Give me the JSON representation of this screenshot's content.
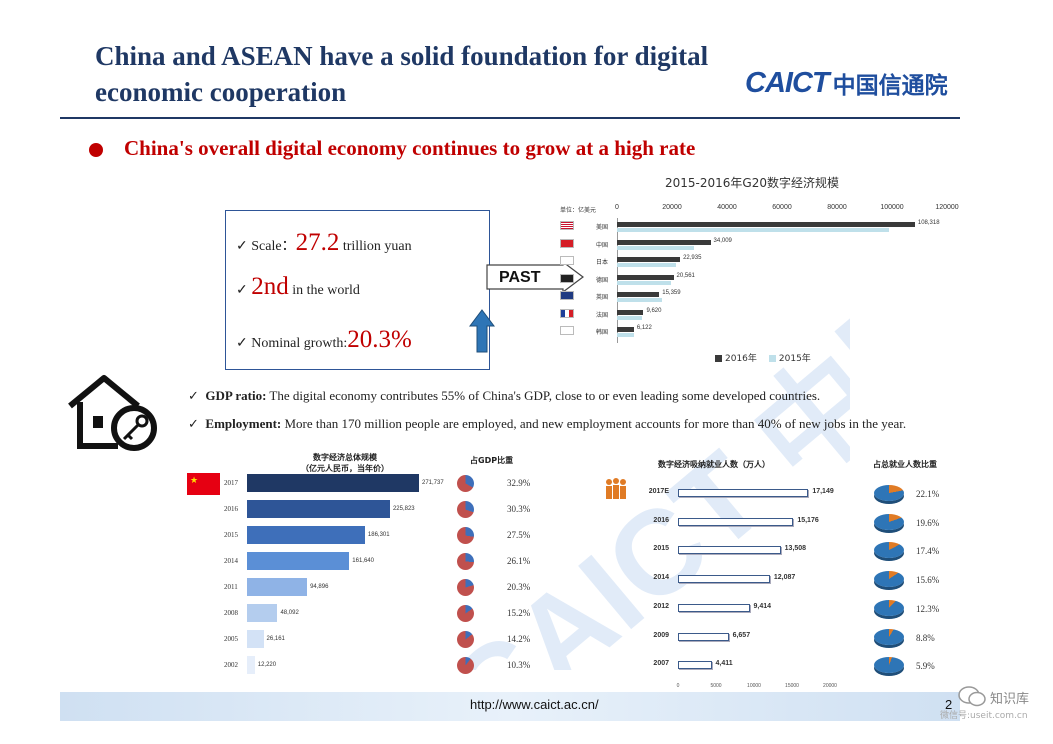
{
  "title": "China and ASEAN have a solid foundation for digital economic cooperation",
  "logo": {
    "en": "CAICT",
    "cn": "中国信通院"
  },
  "bullet": "China's overall digital economy continues to grow at a high rate",
  "box": {
    "scale_label": "Scale：",
    "scale_value": "27.2",
    "scale_unit": "trillion yuan",
    "rank_value": "2nd",
    "rank_text": "in the world",
    "growth_label": "Nominal growth:",
    "growth_value": "20.3%"
  },
  "past_label": "PAST",
  "g20_chart": {
    "type": "bar",
    "title": "2015-2016年G20数字经济规模",
    "unit": "单位：亿美元",
    "ticks": [
      0,
      20000,
      40000,
      60000,
      80000,
      100000,
      120000
    ],
    "xlim": [
      0,
      120000
    ],
    "categories": [
      "美国",
      "中国",
      "日本",
      "德国",
      "英国",
      "法国",
      "韩国"
    ],
    "series": [
      {
        "name": "2016年",
        "values": [
          108318,
          34009,
          22935,
          20561,
          15359,
          9620,
          6122
        ]
      },
      {
        "name": "2015年",
        "values": [
          99000,
          28000,
          21500,
          19500,
          16500,
          9200,
          6000
        ]
      }
    ],
    "value_labels": [
      "108,318",
      "34,009",
      "22,935",
      "20,561",
      "15,359",
      "9,620",
      "6,122"
    ],
    "legend": [
      "2016年",
      "2015年"
    ],
    "colors": {
      "2016": "#3a3a3a",
      "2015": "#bfe0ea"
    }
  },
  "checks": [
    {
      "bold": "GDP ratio:",
      "text": " The digital economy contributes 55% of China's GDP, close to or even leading some developed countries."
    },
    {
      "bold": "Employment:",
      "text": " More than 170 million people are employed, and new employment accounts for more than 40% of new jobs in the year."
    }
  ],
  "scale_chart": {
    "type": "bar",
    "title_line1": "数字经济总体规模",
    "title_line2": "（亿元人民币，当年价）",
    "gdp_title": "占GDP比重",
    "years": [
      "2017",
      "2016",
      "2015",
      "2014",
      "2011",
      "2008",
      "2005",
      "2002"
    ],
    "values": [
      271737,
      225823,
      186301,
      161640,
      94896,
      48092,
      26161,
      12220
    ],
    "value_labels": [
      "271,737",
      "225,823",
      "186,301",
      "161,640",
      "94,896",
      "48,092",
      "26,161",
      "12,220"
    ],
    "gdp_share": [
      32.9,
      30.3,
      27.5,
      26.1,
      20.3,
      15.2,
      14.2,
      10.3
    ],
    "gdp_share_labels": [
      "32.9%",
      "30.3%",
      "27.5%",
      "26.1%",
      "20.3%",
      "15.2%",
      "14.2%",
      "10.3%"
    ]
  },
  "employment_chart": {
    "type": "bar",
    "title": "数字经济吸纳就业人数（万人）",
    "share_title": "占总就业人数比重",
    "years": [
      "2017E",
      "2016",
      "2015",
      "2014",
      "2012",
      "2009",
      "2007"
    ],
    "values": [
      17149,
      15176,
      13508,
      12087,
      9414,
      6657,
      4411
    ],
    "value_labels": [
      "17,149",
      "15,176",
      "13,508",
      "12,087",
      "9,414",
      "6,657",
      "4,411"
    ],
    "share": [
      22.1,
      19.6,
      17.4,
      15.6,
      12.3,
      8.8,
      5.9
    ],
    "share_labels": [
      "22.1%",
      "19.6%",
      "17.4%",
      "15.6%",
      "12.3%",
      "8.8%",
      "5.9%"
    ],
    "ticks": [
      "0",
      "5000",
      "10000",
      "15000",
      "20000"
    ],
    "xlim": [
      0,
      20000
    ]
  },
  "footer": {
    "url": "http://www.caict.ac.cn/",
    "page": "2"
  },
  "watermark": {
    "name": "知识库",
    "sub": "微信号:useit.com.cn"
  }
}
